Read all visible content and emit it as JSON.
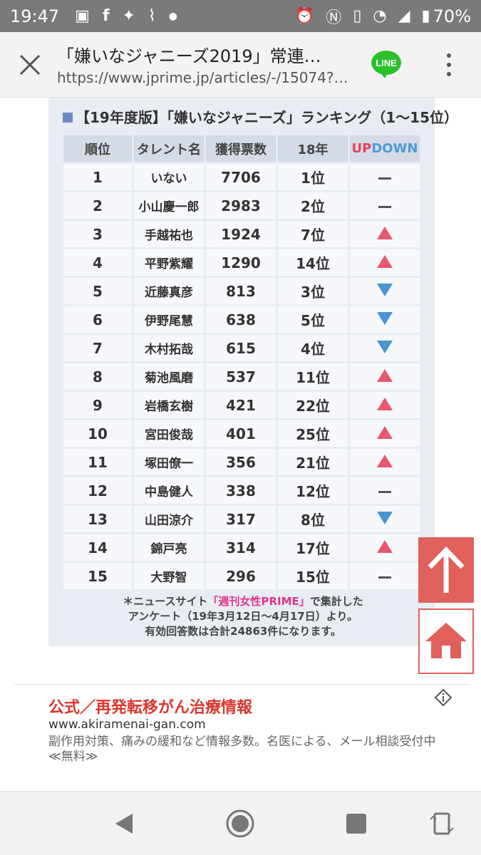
{
  "status": {
    "time": "19:47",
    "battery": "70%",
    "left_icons": [
      "image-icon",
      "facebook-icon",
      "twitter-icon",
      "wifi-calling-icon",
      "dot-icon"
    ],
    "right_icons": [
      "alarm-icon",
      "nfc-icon",
      "vibrate-icon",
      "wifi-icon",
      "signal-icon",
      "battery-icon"
    ]
  },
  "browser": {
    "title": "「嫌いなジャニーズ2019」常連…",
    "url": "https://www.jprime.jp/articles/-/15074?…",
    "line_label": "LINE"
  },
  "ranking": {
    "title": "【19年度版】「嫌いなジャニーズ」ランキング（1～15位）",
    "headers": [
      "順位",
      "タレント名",
      "獲得票数",
      "18年"
    ],
    "header_up": "UP",
    "header_down": "DOWN",
    "rows": [
      {
        "rank": "1",
        "name": "いない",
        "votes": "7706",
        "prev": "1位",
        "trend": "same"
      },
      {
        "rank": "2",
        "name": "小山慶一郎",
        "votes": "2983",
        "prev": "2位",
        "trend": "same"
      },
      {
        "rank": "3",
        "name": "手越祐也",
        "votes": "1924",
        "prev": "7位",
        "trend": "up"
      },
      {
        "rank": "4",
        "name": "平野紫耀",
        "votes": "1290",
        "prev": "14位",
        "trend": "up"
      },
      {
        "rank": "5",
        "name": "近藤真彦",
        "votes": "813",
        "prev": "3位",
        "trend": "down"
      },
      {
        "rank": "6",
        "name": "伊野尾慧",
        "votes": "638",
        "prev": "5位",
        "trend": "down"
      },
      {
        "rank": "7",
        "name": "木村拓哉",
        "votes": "615",
        "prev": "4位",
        "trend": "down"
      },
      {
        "rank": "8",
        "name": "菊池風磨",
        "votes": "537",
        "prev": "11位",
        "trend": "up"
      },
      {
        "rank": "9",
        "name": "岩橋玄樹",
        "votes": "421",
        "prev": "22位",
        "trend": "up"
      },
      {
        "rank": "10",
        "name": "宮田俊哉",
        "votes": "401",
        "prev": "25位",
        "trend": "up"
      },
      {
        "rank": "11",
        "name": "塚田僚一",
        "votes": "356",
        "prev": "21位",
        "trend": "up"
      },
      {
        "rank": "12",
        "name": "中島健人",
        "votes": "338",
        "prev": "12位",
        "trend": "same"
      },
      {
        "rank": "13",
        "name": "山田涼介",
        "votes": "317",
        "prev": "8位",
        "trend": "down"
      },
      {
        "rank": "14",
        "name": "錦戸亮",
        "votes": "314",
        "prev": "17位",
        "trend": "up"
      },
      {
        "rank": "15",
        "name": "大野智",
        "votes": "296",
        "prev": "15位",
        "trend": "same"
      }
    ],
    "note_prefix": "＊ニュースサイト",
    "note_source": "「週刊女性PRIME」",
    "note_suffix": "で集計した",
    "note_line2": "アンケート（19年3月12日～4月17日）より。",
    "note_line3": "有効回答数は合計24863件になります。"
  },
  "ad": {
    "title": "公式／再発転移がん治療情報",
    "url": "www.akiramenai-gan.com",
    "description": "副作用対策、痛みの緩和など情報多数。名医による、メール相談受付中≪無料≫"
  },
  "colors": {
    "up": "#e8576d",
    "down": "#4a94d3",
    "accent_button": "#e0605c",
    "line_green": "#2bc12b"
  }
}
